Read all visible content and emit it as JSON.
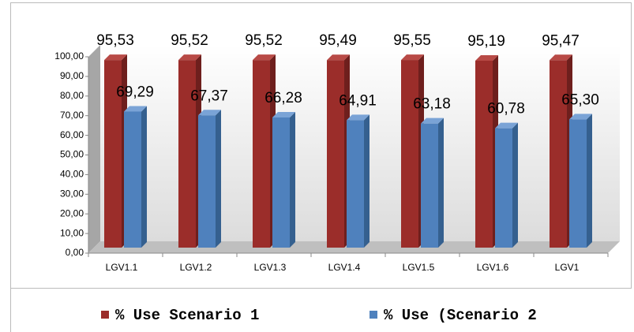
{
  "chart_data": {
    "type": "bar3d",
    "categories": [
      "LGV1.1",
      "LGV1.2",
      "LGV1.3",
      "LGV1.4",
      "LGV1.5",
      "LGV1.6",
      "LGV1"
    ],
    "series": [
      {
        "name": "% Use Scenario 1",
        "color": "#9b2d2a",
        "values": [
          95.53,
          95.52,
          95.52,
          95.49,
          95.55,
          95.19,
          95.47
        ],
        "value_labels": [
          "95,53",
          "95,52",
          "95,52",
          "95,49",
          "95,55",
          "95,19",
          "95,47"
        ]
      },
      {
        "name": "% Use (Scenario 2",
        "color": "#4f81bd",
        "values": [
          69.29,
          67.37,
          66.28,
          64.91,
          63.18,
          60.78,
          65.3
        ],
        "value_labels": [
          "69,29",
          "67,37",
          "66,28",
          "64,91",
          "63,18",
          "60,78",
          "65,30"
        ]
      }
    ],
    "ylim": [
      0,
      100
    ],
    "yticks": [
      {
        "value": 0,
        "label": "0,00"
      },
      {
        "value": 10,
        "label": "10,00"
      },
      {
        "value": 20,
        "label": "20,00"
      },
      {
        "value": 30,
        "label": "30,00"
      },
      {
        "value": 40,
        "label": "40,00"
      },
      {
        "value": 50,
        "label": "50,00"
      },
      {
        "value": 60,
        "label": "60,00"
      },
      {
        "value": 70,
        "label": "70,00"
      },
      {
        "value": 80,
        "label": "80,00"
      },
      {
        "value": 90,
        "label": "90,00"
      },
      {
        "value": 100,
        "label": "100,00"
      }
    ],
    "legend": "bottom"
  }
}
